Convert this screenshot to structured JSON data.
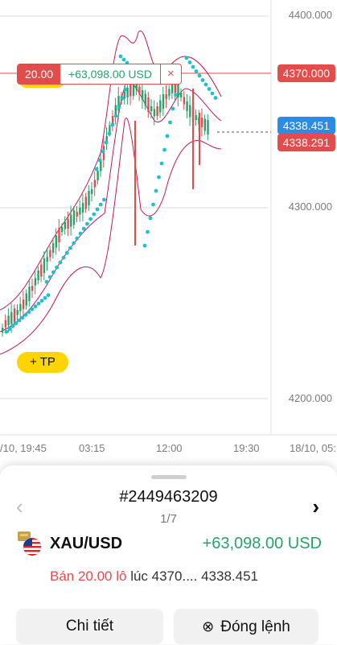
{
  "chart": {
    "y_labels": [
      "4400.000",
      "4300.000",
      "4200.000"
    ],
    "x_labels": [
      "/10, 19:45",
      "03:15",
      "12:00",
      "19:30",
      "18/10, 05:"
    ],
    "price_tags": {
      "entry": "4370.000",
      "ask": "4338.451",
      "bid": "4338.291"
    },
    "colors": {
      "up": "#27a36a",
      "down": "#e24c4c",
      "ask": "#2b8be5",
      "sar": "#22c0cf",
      "band": "#c2185b"
    }
  },
  "order_line": {
    "volume": "20.00",
    "profit": "+63,098.00 USD",
    "close_symbol": "×"
  },
  "tp_button": "+ TP",
  "sheet": {
    "order_id": "#2449463209",
    "pager": "1/7",
    "prev_symbol": "‹",
    "next_symbol": "›",
    "symbol": "XAU/USD",
    "profit": "+63,098.00 USD",
    "side_volume": "Bán 20.00 lô",
    "detail_rest": " lúc 4370.... 4338.451",
    "detail_button": "Chi tiết",
    "close_button": "Đóng lệnh",
    "close_icon": "⊗"
  }
}
